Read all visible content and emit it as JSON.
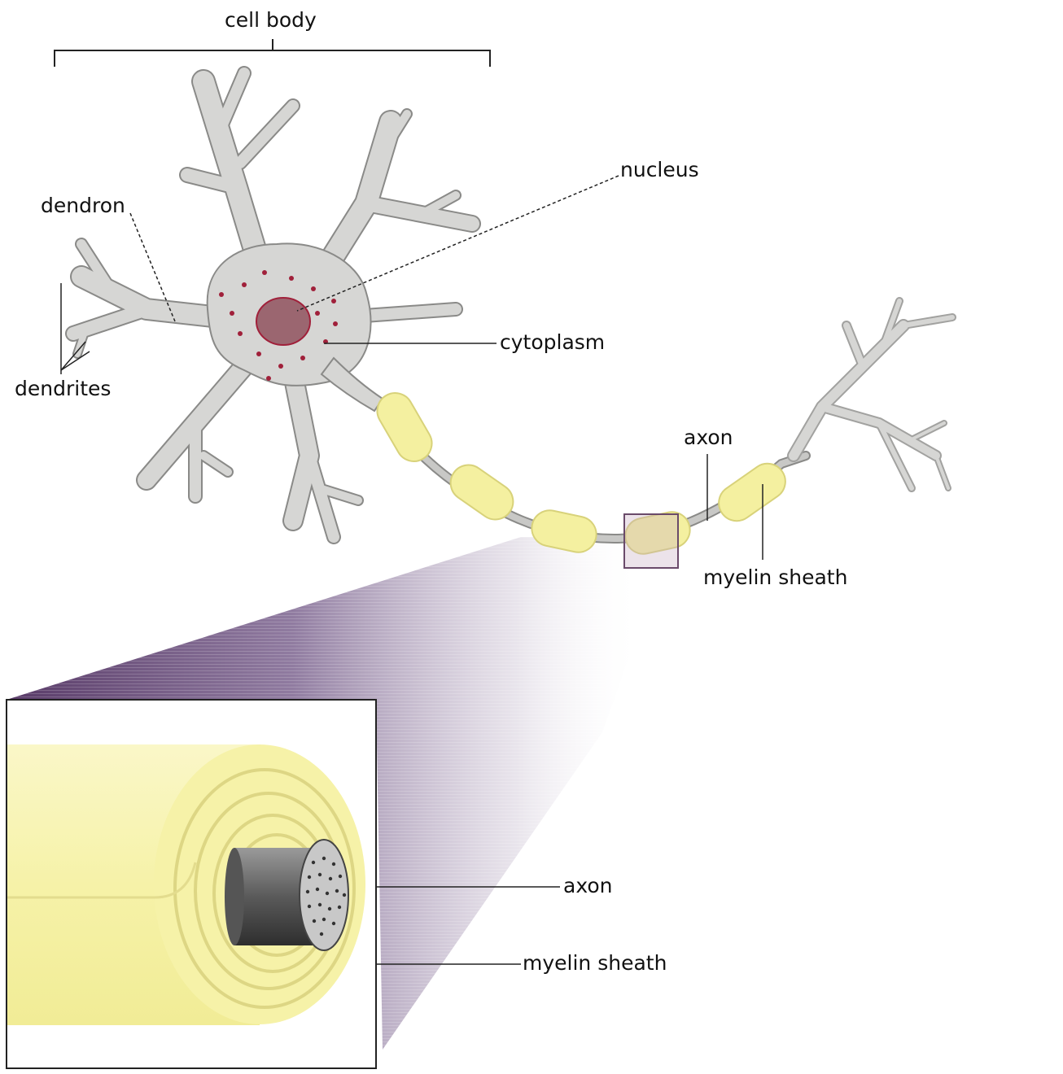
{
  "labels": {
    "cell_body": "cell body",
    "nucleus": "nucleus",
    "dendron": "dendron",
    "dendrites": "dendrites",
    "cytoplasm": "cytoplasm",
    "axon_top": "axon",
    "myelin_top": "myelin sheath",
    "axon_inset": "axon",
    "myelin_inset": "myelin sheath"
  },
  "colors": {
    "cell": "#d6d6d4",
    "cell_outline": "#8a8a88",
    "nucleus": "#9b6670",
    "nucleus_outline": "#a0203a",
    "granule": "#a0203a",
    "myelin": "#f4f0a0",
    "myelin_outline": "#d8d27a",
    "zoom": "#5e3f6e",
    "axon_core": "#4a4a4a"
  }
}
